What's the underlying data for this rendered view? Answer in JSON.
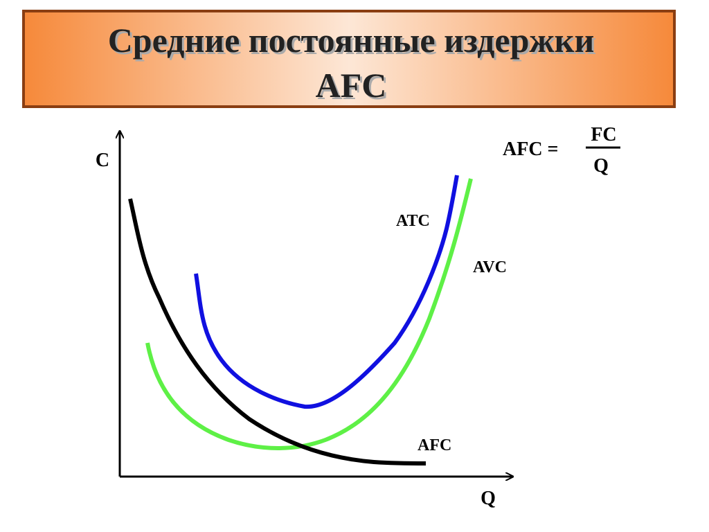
{
  "header": {
    "title_line1": "Средние постоянные издержки",
    "title_line2": "AFC"
  },
  "axes": {
    "y_label": "C",
    "x_label": "Q"
  },
  "curves": {
    "atc": "ATC",
    "avc": "AVC",
    "afc": "AFC"
  },
  "formula": {
    "left": "AFC =",
    "numerator": "FC",
    "denominator": "Q"
  }
}
